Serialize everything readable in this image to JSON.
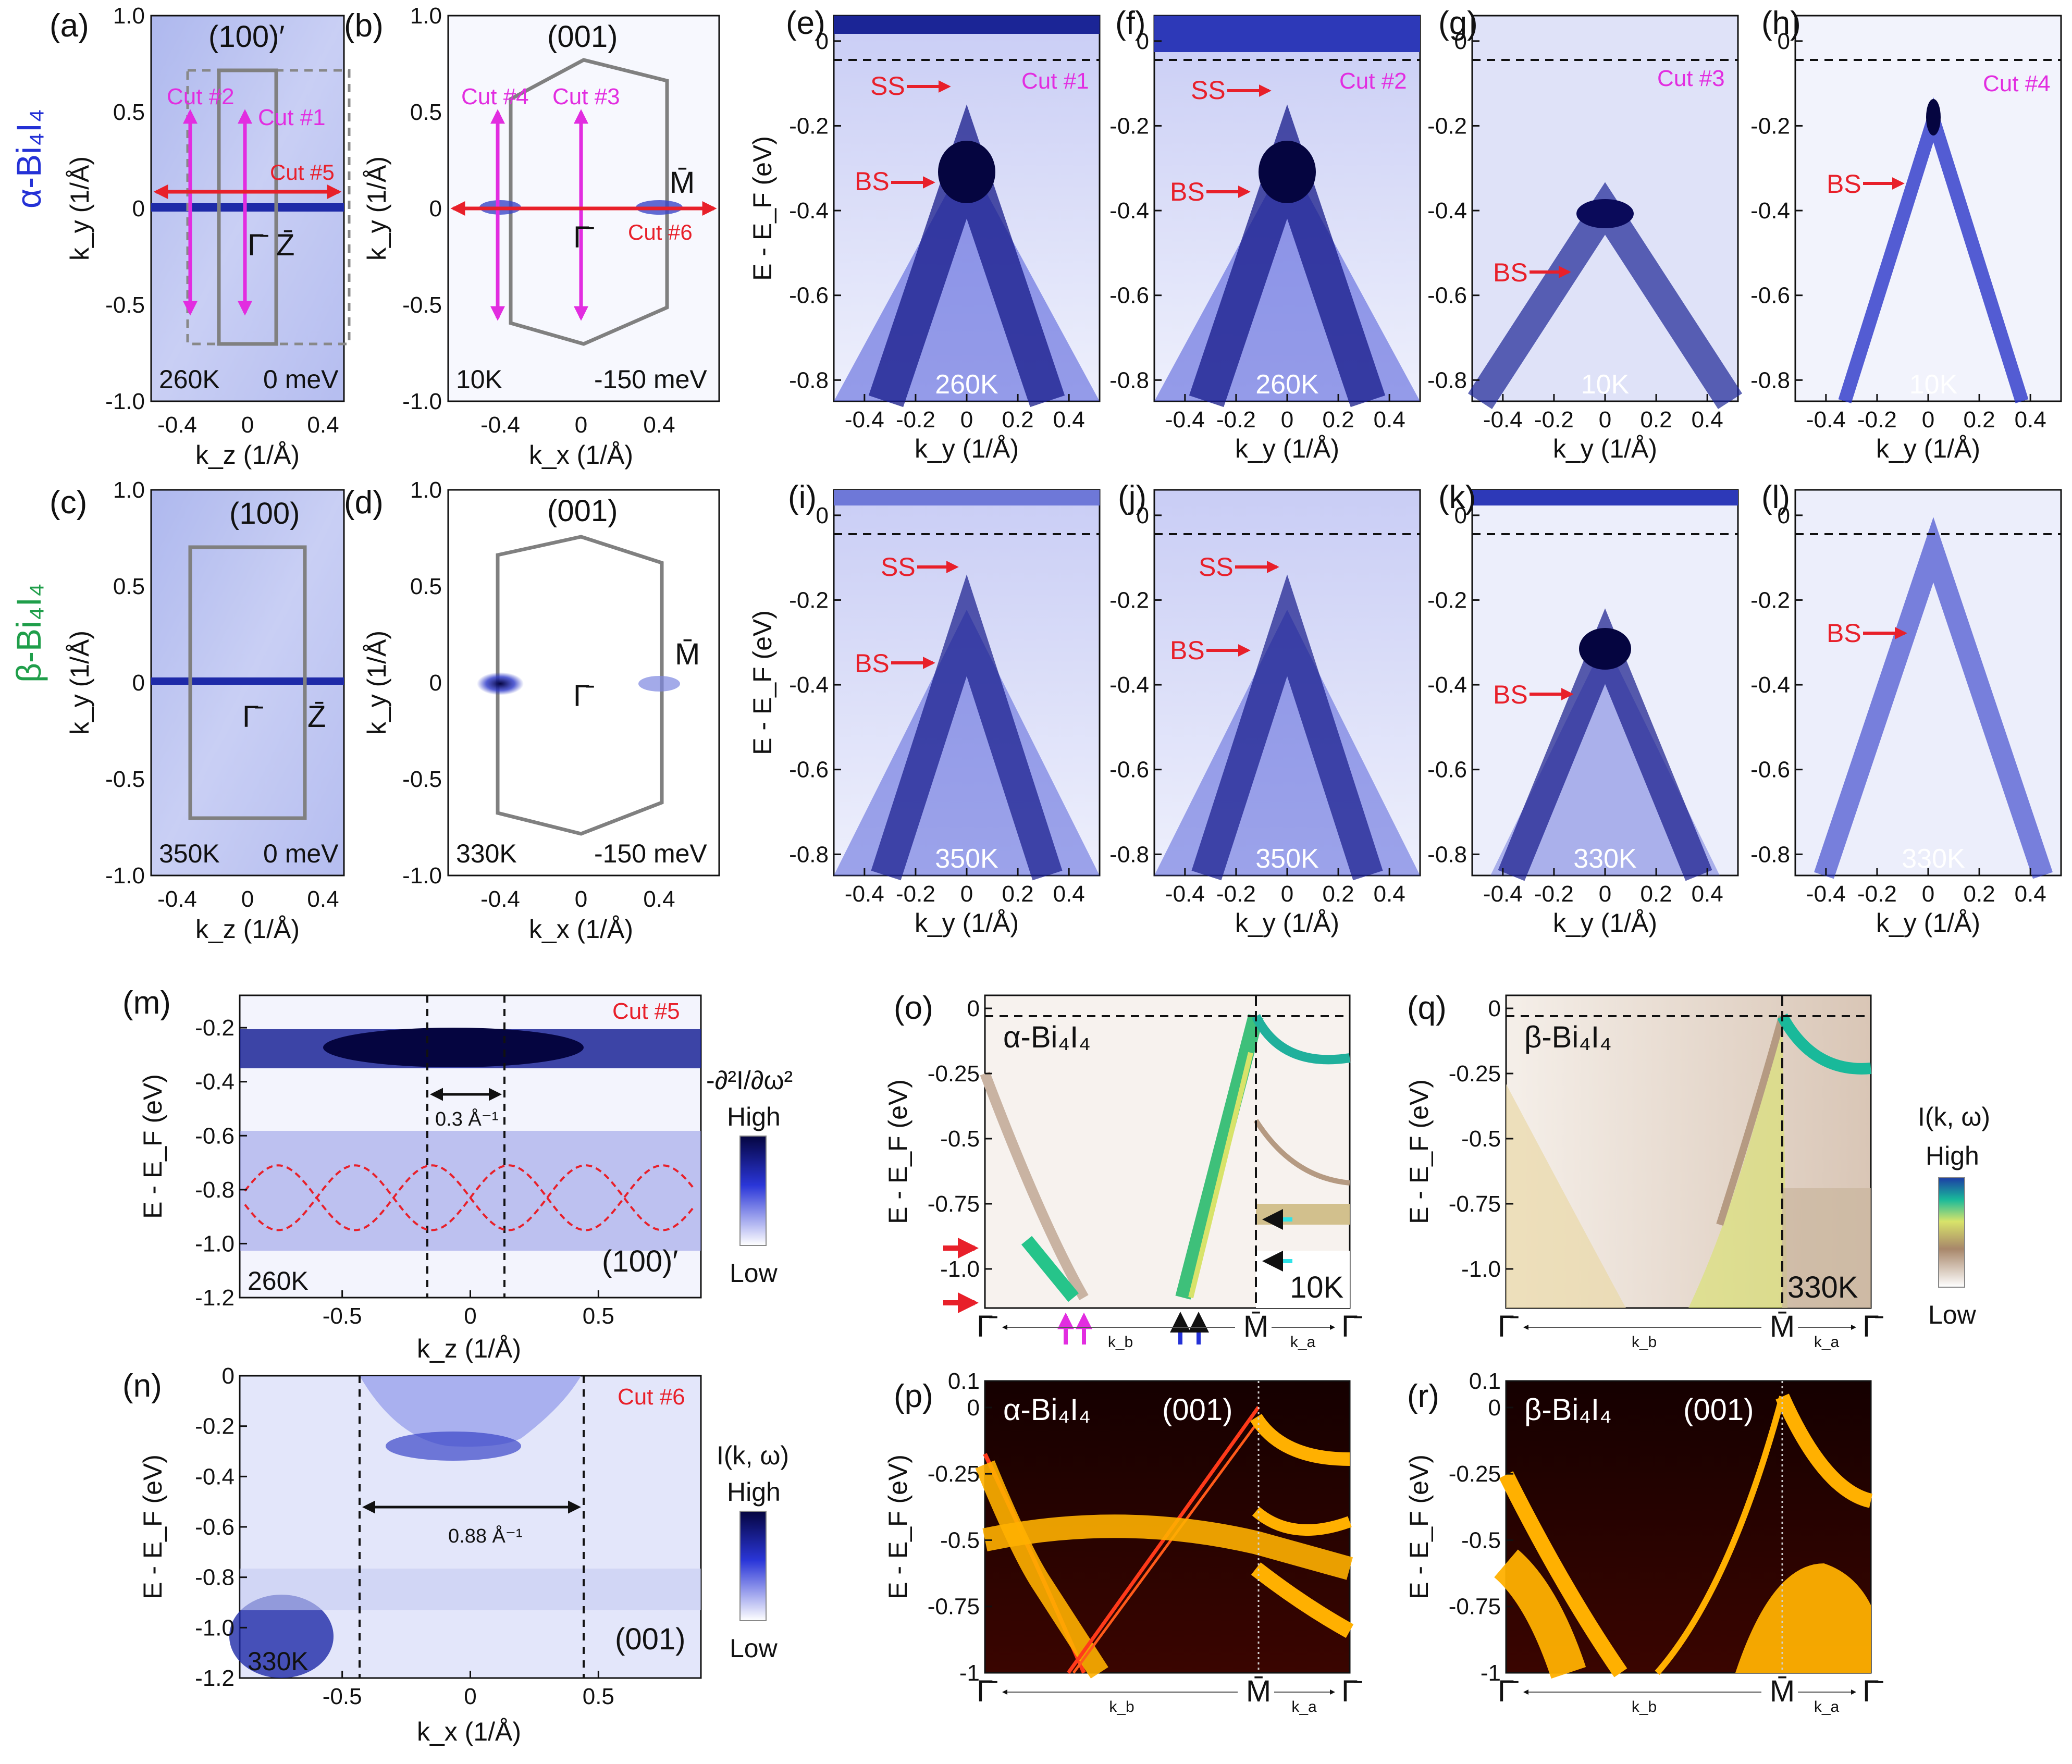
{
  "colors": {
    "magenta": "#e22de0",
    "red": "#e8202a",
    "blue_alpha": "#2431d6",
    "green_beta": "#1f9e4a",
    "grey_bz": "#808080",
    "arpes_dark": "#0a0a5a",
    "calc_bg": "#1a0000",
    "calc_band": "#ffb000"
  },
  "row_labels": {
    "alpha": "α-Bi₄I₄",
    "beta": "β-Bi₄I₄"
  },
  "panels": {
    "a": {
      "label": "(a)",
      "surface": "(100)′",
      "temp": "260K",
      "energy": "0 meV",
      "xlabel": "k_z (1/Å)",
      "ylabel": "k_y (1/Å)",
      "xticks": [
        "-0.4",
        "0",
        "0.4"
      ],
      "yticks": [
        "1.0",
        "0.5",
        "0",
        "-0.5",
        "-1.0"
      ],
      "cuts": [
        "Cut #1",
        "Cut #2",
        "Cut #5"
      ],
      "points": [
        "Γ̄",
        "Z̄"
      ]
    },
    "b": {
      "label": "(b)",
      "surface": "(001)",
      "temp": "10K",
      "energy": "-150 meV",
      "xlabel": "k_x (1/Å)",
      "ylabel": "k_y (1/Å)",
      "xticks": [
        "-0.4",
        "0",
        "0.4"
      ],
      "yticks": [
        "1.0",
        "0.5",
        "0",
        "-0.5",
        "-1.0"
      ],
      "cuts": [
        "Cut #3",
        "Cut #4",
        "Cut #6"
      ],
      "points": [
        "Γ̄",
        "M̄"
      ]
    },
    "c": {
      "label": "(c)",
      "surface": "(100)",
      "temp": "350K",
      "energy": "0 meV",
      "xlabel": "k_z (1/Å)",
      "ylabel": "k_y (1/Å)",
      "xticks": [
        "-0.4",
        "0",
        "0.4"
      ],
      "yticks": [
        "1.0",
        "0.5",
        "0",
        "-0.5",
        "-1.0"
      ],
      "points": [
        "Γ̄",
        "Z̄"
      ]
    },
    "d": {
      "label": "(d)",
      "surface": "(001)",
      "temp": "330K",
      "energy": "-150 meV",
      "xlabel": "k_x (1/Å)",
      "ylabel": "k_y (1/Å)",
      "xticks": [
        "-0.4",
        "0",
        "0.4"
      ],
      "yticks": [
        "1.0",
        "0.5",
        "0",
        "-0.5",
        "-1.0"
      ],
      "points": [
        "Γ̄",
        "M̄"
      ]
    },
    "e": {
      "label": "(e)",
      "cut": "Cut #1",
      "temp": "260K",
      "ss": "SS",
      "bs": "BS"
    },
    "f": {
      "label": "(f)",
      "cut": "Cut #2",
      "temp": "260K",
      "ss": "SS",
      "bs": "BS"
    },
    "g": {
      "label": "(g)",
      "cut": "Cut #3",
      "temp": "10K",
      "bs": "BS"
    },
    "h": {
      "label": "(h)",
      "cut": "Cut #4",
      "temp": "10K",
      "bs": "BS"
    },
    "i": {
      "label": "(i)",
      "temp": "350K",
      "ss": "SS",
      "bs": "BS"
    },
    "j": {
      "label": "(j)",
      "temp": "350K",
      "ss": "SS",
      "bs": "BS"
    },
    "k": {
      "label": "(k)",
      "temp": "330K",
      "bs": "BS"
    },
    "l": {
      "label": "(l)",
      "temp": "330K",
      "bs": "BS"
    },
    "m": {
      "label": "(m)",
      "cut": "Cut #5",
      "temp": "260K",
      "surface": "(100)′",
      "xlabel": "k_z (1/Å)",
      "ylabel": "E - E_F (eV)",
      "spacing": "0.3 Å⁻¹",
      "xticks": [
        "-0.5",
        "0",
        "0.5"
      ],
      "yticks": [
        "-0.2",
        "-0.4",
        "-0.6",
        "-0.8",
        "-1.0",
        "-1.2"
      ],
      "colorbar_title": "-∂²I/∂ω²",
      "high": "High",
      "low": "Low"
    },
    "n": {
      "label": "(n)",
      "cut": "Cut #6",
      "temp": "330K",
      "surface": "(001)",
      "xlabel": "k_x (1/Å)",
      "ylabel": "E - E_F (eV)",
      "spacing": "0.88 Å⁻¹",
      "xticks": [
        "-0.5",
        "0",
        "0.5"
      ],
      "yticks": [
        "0",
        "-0.2",
        "-0.4",
        "-0.6",
        "-0.8",
        "-1.0",
        "-1.2"
      ],
      "colorbar_title": "I(k, ω)",
      "high": "High",
      "low": "Low"
    },
    "o": {
      "label": "(o)",
      "material": "α-Bi₄I₄",
      "temp": "10K",
      "ylabel": "E - E_F (eV)",
      "yticks": [
        "0",
        "-0.25",
        "-0.5",
        "-0.75",
        "-1.0"
      ],
      "kpoints": [
        "Γ̄",
        "M̄",
        "Γ̄"
      ],
      "kb": "k_b",
      "ka": "k_a"
    },
    "p": {
      "label": "(p)",
      "material": "α-Bi₄I₄",
      "surface": "(001)",
      "ylabel": "E - E_F (eV)",
      "yticks": [
        "0.1",
        "0",
        "-0.25",
        "-0.5",
        "-0.75",
        "-1"
      ],
      "kpoints": [
        "Γ̄",
        "M̄",
        "Γ̄"
      ],
      "kb": "k_b",
      "ka": "k_a"
    },
    "q": {
      "label": "(q)",
      "material": "β-Bi₄I₄",
      "temp": "330K",
      "ylabel": "E - E_F (eV)",
      "yticks": [
        "0",
        "-0.25",
        "-0.5",
        "-0.75",
        "-1.0"
      ],
      "kpoints": [
        "Γ̄",
        "M̄",
        "Γ̄"
      ],
      "kb": "k_b",
      "ka": "k_a",
      "colorbar_title": "I(k, ω)",
      "high": "High",
      "low": "Low"
    },
    "r": {
      "label": "(r)",
      "material": "β-Bi₄I₄",
      "surface": "(001)",
      "ylabel": "E - E_F (eV)",
      "yticks": [
        "0.1",
        "0",
        "-0.25",
        "-0.5",
        "-0.75",
        "-1"
      ],
      "kpoints": [
        "Γ̄",
        "M̄",
        "Γ̄"
      ],
      "kb": "k_b",
      "ka": "k_a"
    }
  },
  "dispersion_axes": {
    "xlabel": "k_y (1/Å)",
    "ylabel": "E - E_F (eV)",
    "xticks": [
      "-0.4",
      "-0.2",
      "0",
      "0.2",
      "0.4"
    ],
    "yticks": [
      "0",
      "-0.2",
      "-0.4",
      "-0.6",
      "-0.8"
    ]
  }
}
